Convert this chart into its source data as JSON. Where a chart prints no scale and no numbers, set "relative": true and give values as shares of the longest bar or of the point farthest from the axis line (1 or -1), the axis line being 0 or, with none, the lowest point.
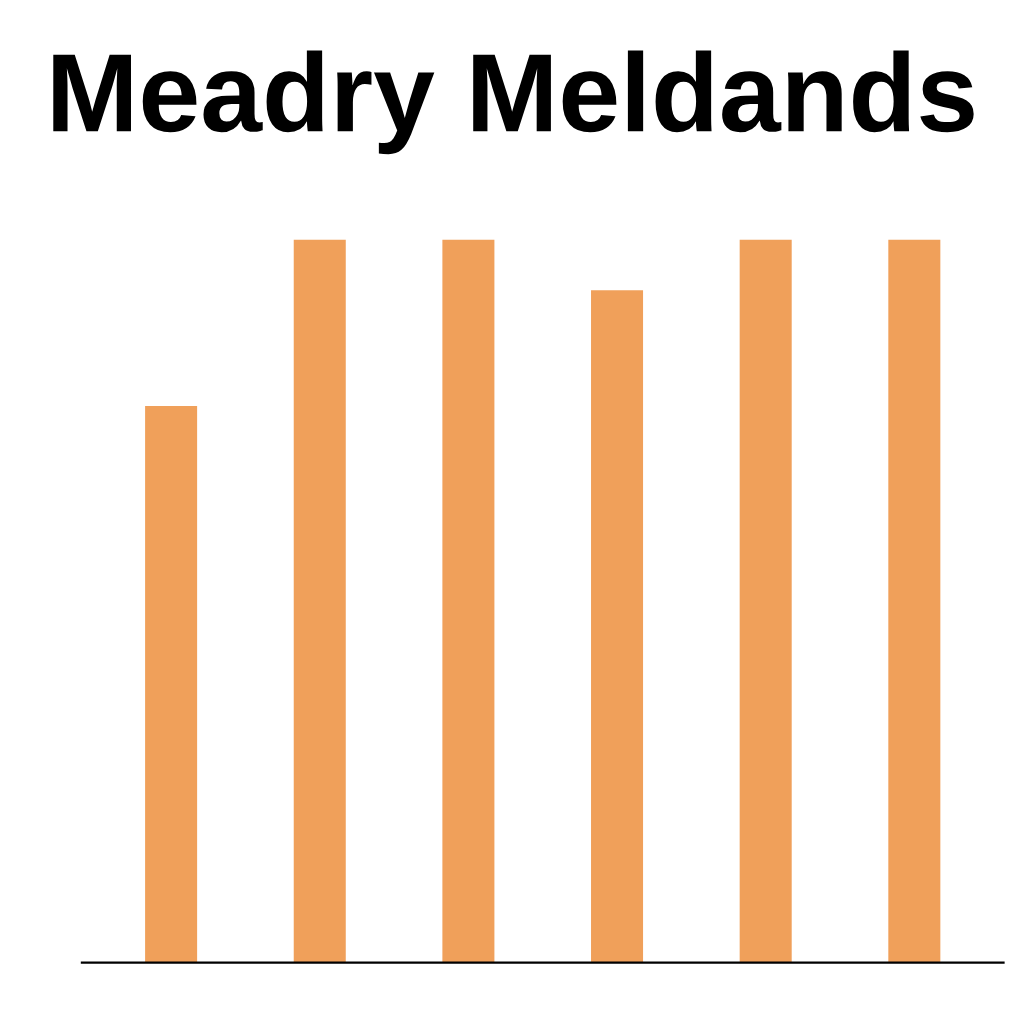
{
  "chart_data": {
    "type": "bar",
    "title": "Meadry Meldands",
    "relative": true,
    "categories": [
      null,
      null,
      null,
      null,
      null,
      null
    ],
    "values": [
      0.77,
      1,
      1,
      0.93,
      1,
      1
    ],
    "color": "#f0a05a",
    "grid": false,
    "legend": false
  }
}
